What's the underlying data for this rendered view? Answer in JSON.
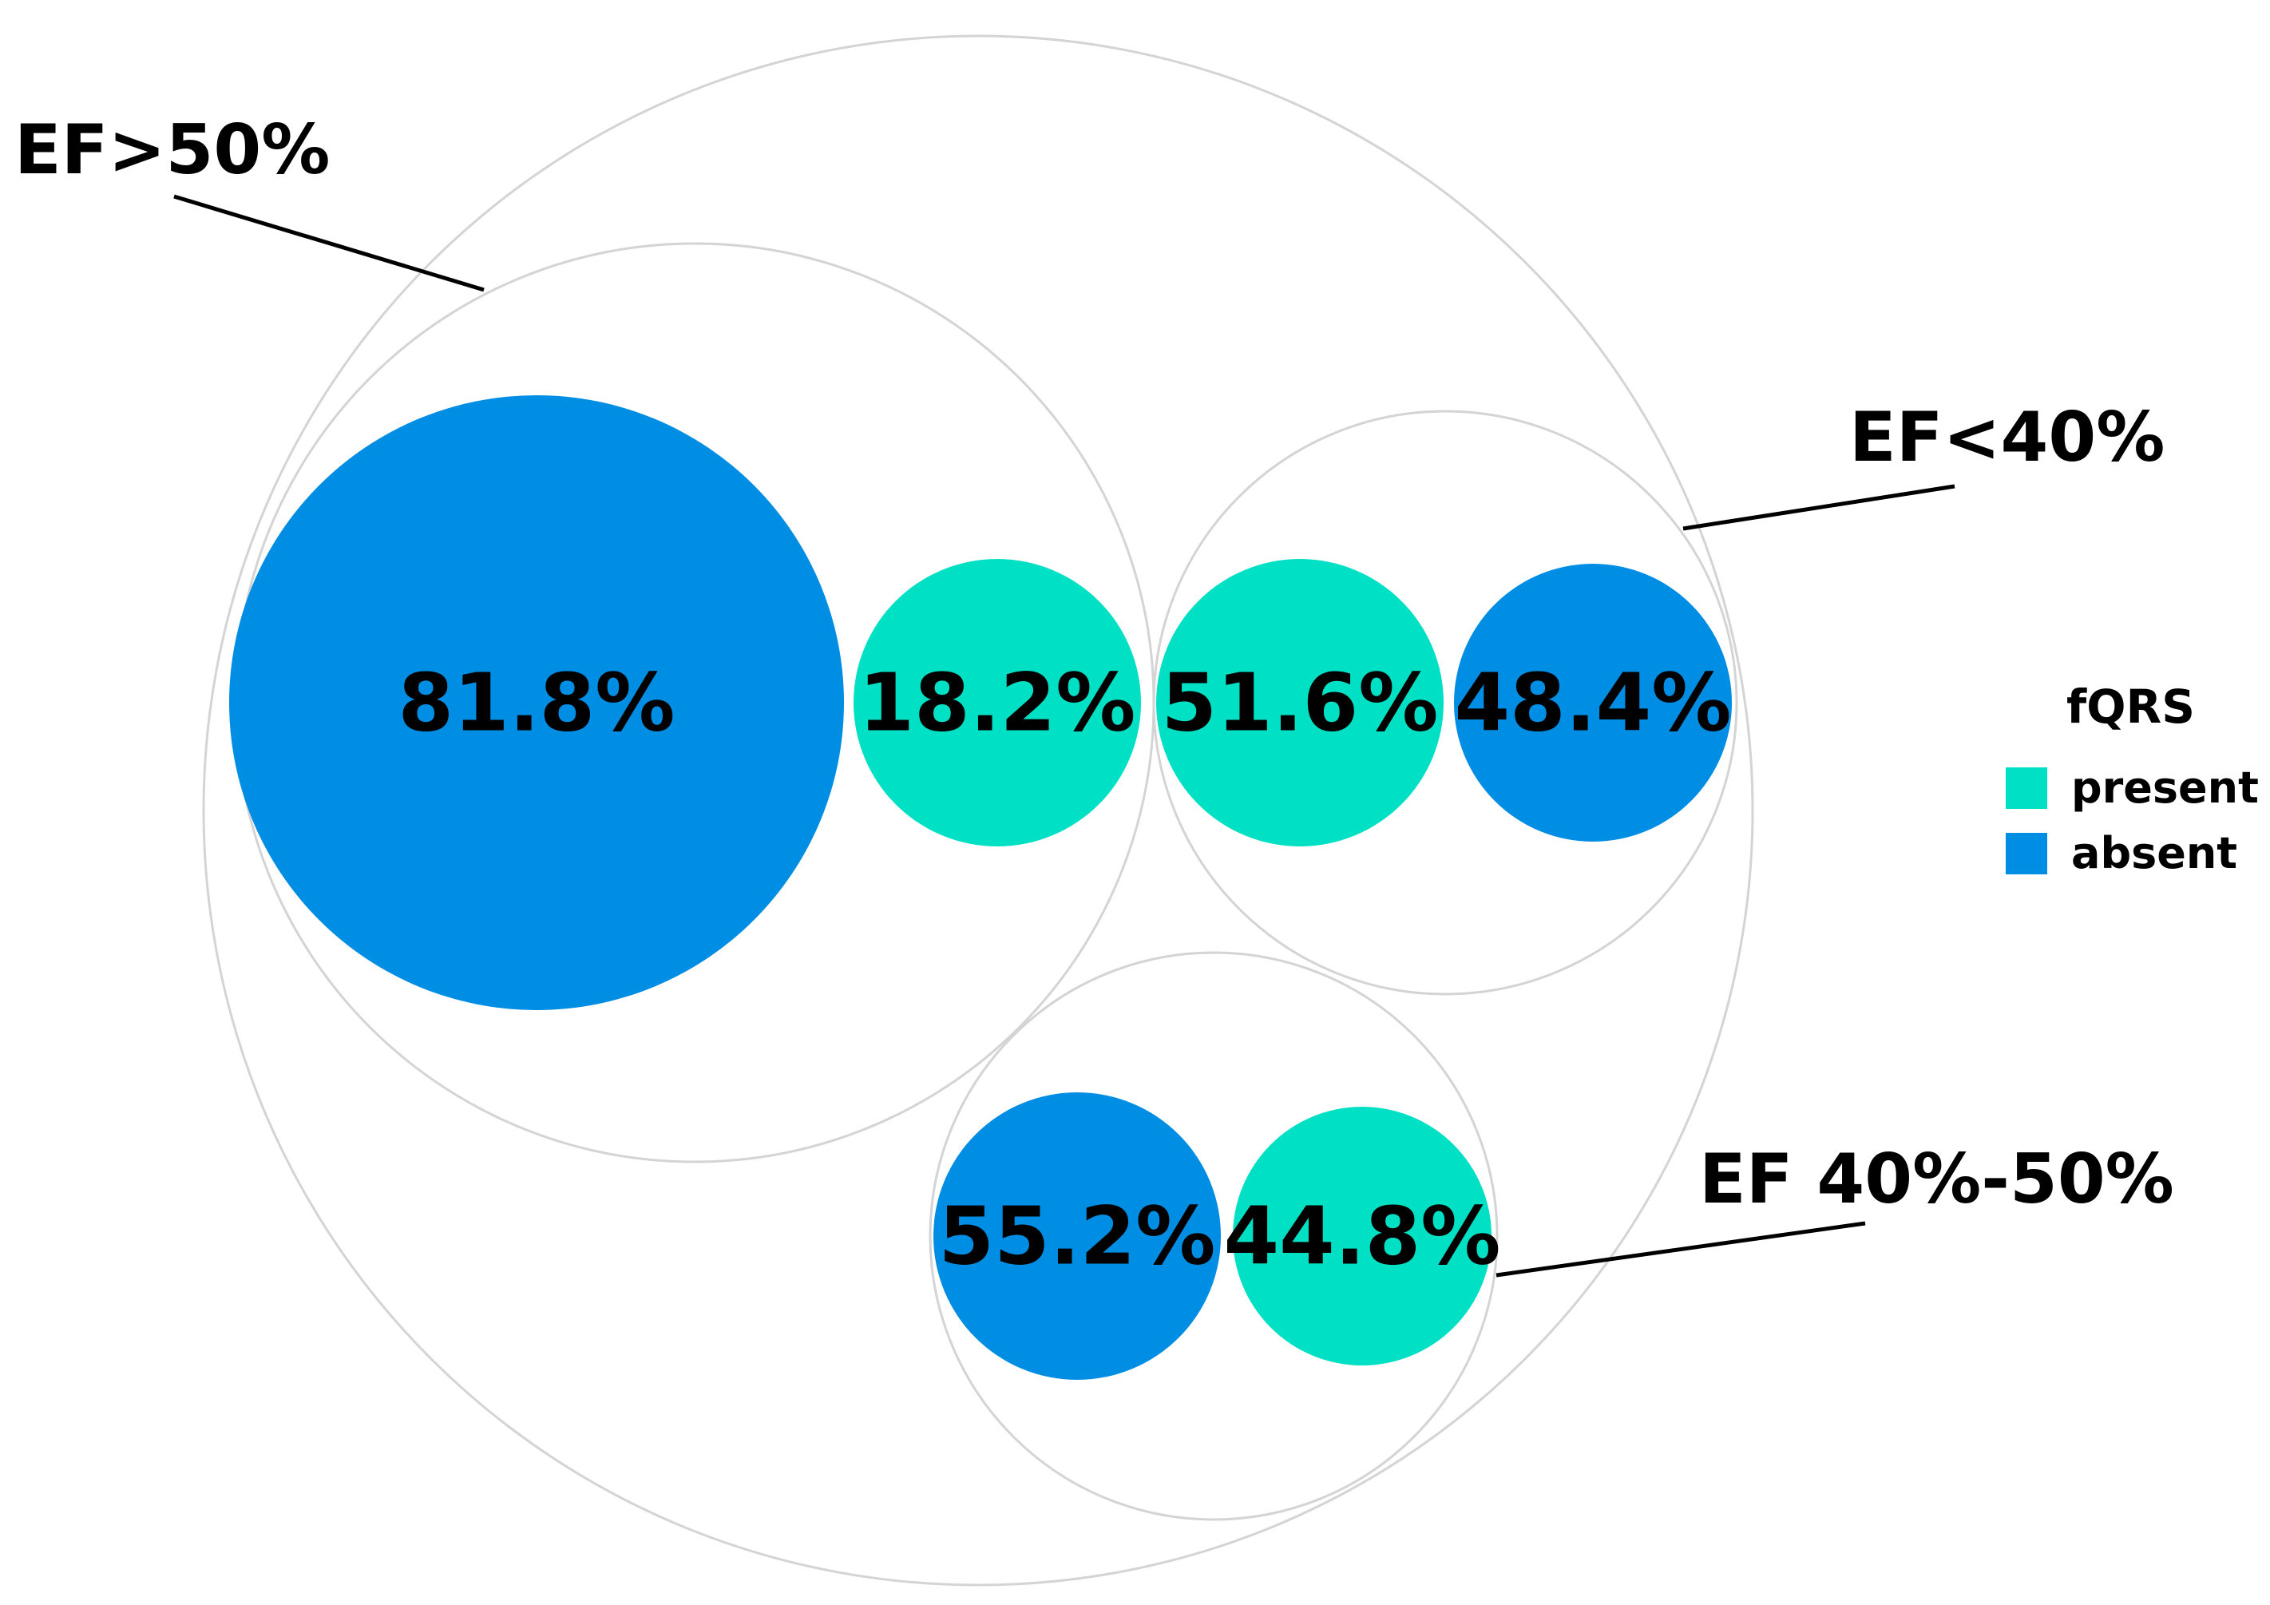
{
  "chart_data": {
    "type": "circle-packing",
    "colors": {
      "present": "#00e0c4",
      "absent": "#008de4",
      "outline": "#d4d4d4"
    },
    "legend": {
      "title": "fQRS",
      "placement": "right",
      "items": [
        {
          "key": "present",
          "label": "present"
        },
        {
          "key": "absent",
          "label": "absent"
        }
      ]
    },
    "groups": [
      {
        "id": "ef_gt50",
        "label": "EF>50%",
        "leaves": [
          {
            "category": "absent",
            "value": 81.8,
            "label": "81.8%"
          },
          {
            "category": "present",
            "value": 18.2,
            "label": "18.2%"
          }
        ]
      },
      {
        "id": "ef_lt40",
        "label": "EF<40%",
        "leaves": [
          {
            "category": "present",
            "value": 51.6,
            "label": "51.6%"
          },
          {
            "category": "absent",
            "value": 48.4,
            "label": "48.4%"
          }
        ]
      },
      {
        "id": "ef_40_50",
        "label": "EF 40%-50%",
        "leaves": [
          {
            "category": "absent",
            "value": 55.2,
            "label": "55.2%"
          },
          {
            "category": "present",
            "value": 44.8,
            "label": "44.8%"
          }
        ]
      }
    ]
  }
}
